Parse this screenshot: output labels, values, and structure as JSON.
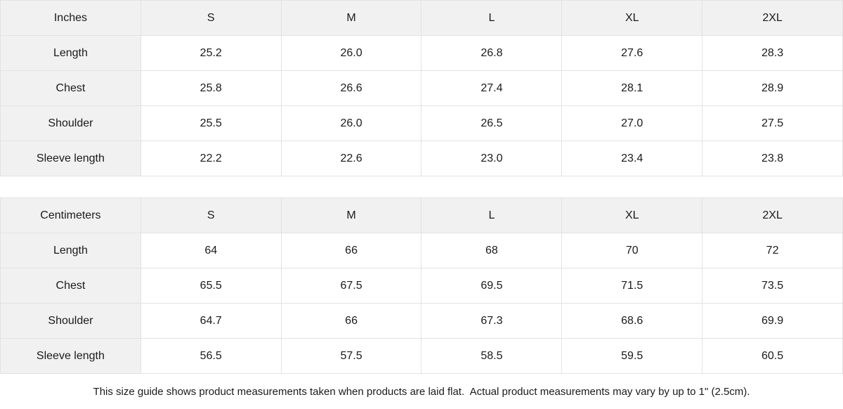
{
  "tables": [
    {
      "unit_label": "Inches",
      "sizes": [
        "S",
        "M",
        "L",
        "XL",
        "2XL"
      ],
      "rows": [
        {
          "label": "Length",
          "values": [
            "25.2",
            "26.0",
            "26.8",
            "27.6",
            "28.3"
          ]
        },
        {
          "label": "Chest",
          "values": [
            "25.8",
            "26.6",
            "27.4",
            "28.1",
            "28.9"
          ]
        },
        {
          "label": "Shoulder",
          "values": [
            "25.5",
            "26.0",
            "26.5",
            "27.0",
            "27.5"
          ]
        },
        {
          "label": "Sleeve length",
          "values": [
            "22.2",
            "22.6",
            "23.0",
            "23.4",
            "23.8"
          ]
        }
      ]
    },
    {
      "unit_label": "Centimeters",
      "sizes": [
        "S",
        "M",
        "L",
        "XL",
        "2XL"
      ],
      "rows": [
        {
          "label": "Length",
          "values": [
            "64",
            "66",
            "68",
            "70",
            "72"
          ]
        },
        {
          "label": "Chest",
          "values": [
            "65.5",
            "67.5",
            "69.5",
            "71.5",
            "73.5"
          ]
        },
        {
          "label": "Shoulder",
          "values": [
            "64.7",
            "66",
            "67.3",
            "68.6",
            "69.9"
          ]
        },
        {
          "label": "Sleeve length",
          "values": [
            "56.5",
            "57.5",
            "58.5",
            "59.5",
            "60.5"
          ]
        }
      ]
    }
  ],
  "footer_note": "This size guide shows product measurements taken when products are laid flat.  Actual product measurements may vary by up to 1\" (2.5cm).",
  "colors": {
    "header_bg": "#f1f1f1",
    "border": "#e2e2e2",
    "text": "#1a1a1a",
    "cell_bg": "#ffffff"
  },
  "chart_data": [
    {
      "type": "table",
      "title": "Inches",
      "columns": [
        "Inches",
        "S",
        "M",
        "L",
        "XL",
        "2XL"
      ],
      "rows": [
        [
          "Length",
          25.2,
          26.0,
          26.8,
          27.6,
          28.3
        ],
        [
          "Chest",
          25.8,
          26.6,
          27.4,
          28.1,
          28.9
        ],
        [
          "Shoulder",
          25.5,
          26.0,
          26.5,
          27.0,
          27.5
        ],
        [
          "Sleeve length",
          22.2,
          22.6,
          23.0,
          23.4,
          23.8
        ]
      ]
    },
    {
      "type": "table",
      "title": "Centimeters",
      "columns": [
        "Centimeters",
        "S",
        "M",
        "L",
        "XL",
        "2XL"
      ],
      "rows": [
        [
          "Length",
          64,
          66,
          68,
          70,
          72
        ],
        [
          "Chest",
          65.5,
          67.5,
          69.5,
          71.5,
          73.5
        ],
        [
          "Shoulder",
          64.7,
          66,
          67.3,
          68.6,
          69.9
        ],
        [
          "Sleeve length",
          56.5,
          57.5,
          58.5,
          59.5,
          60.5
        ]
      ]
    }
  ]
}
